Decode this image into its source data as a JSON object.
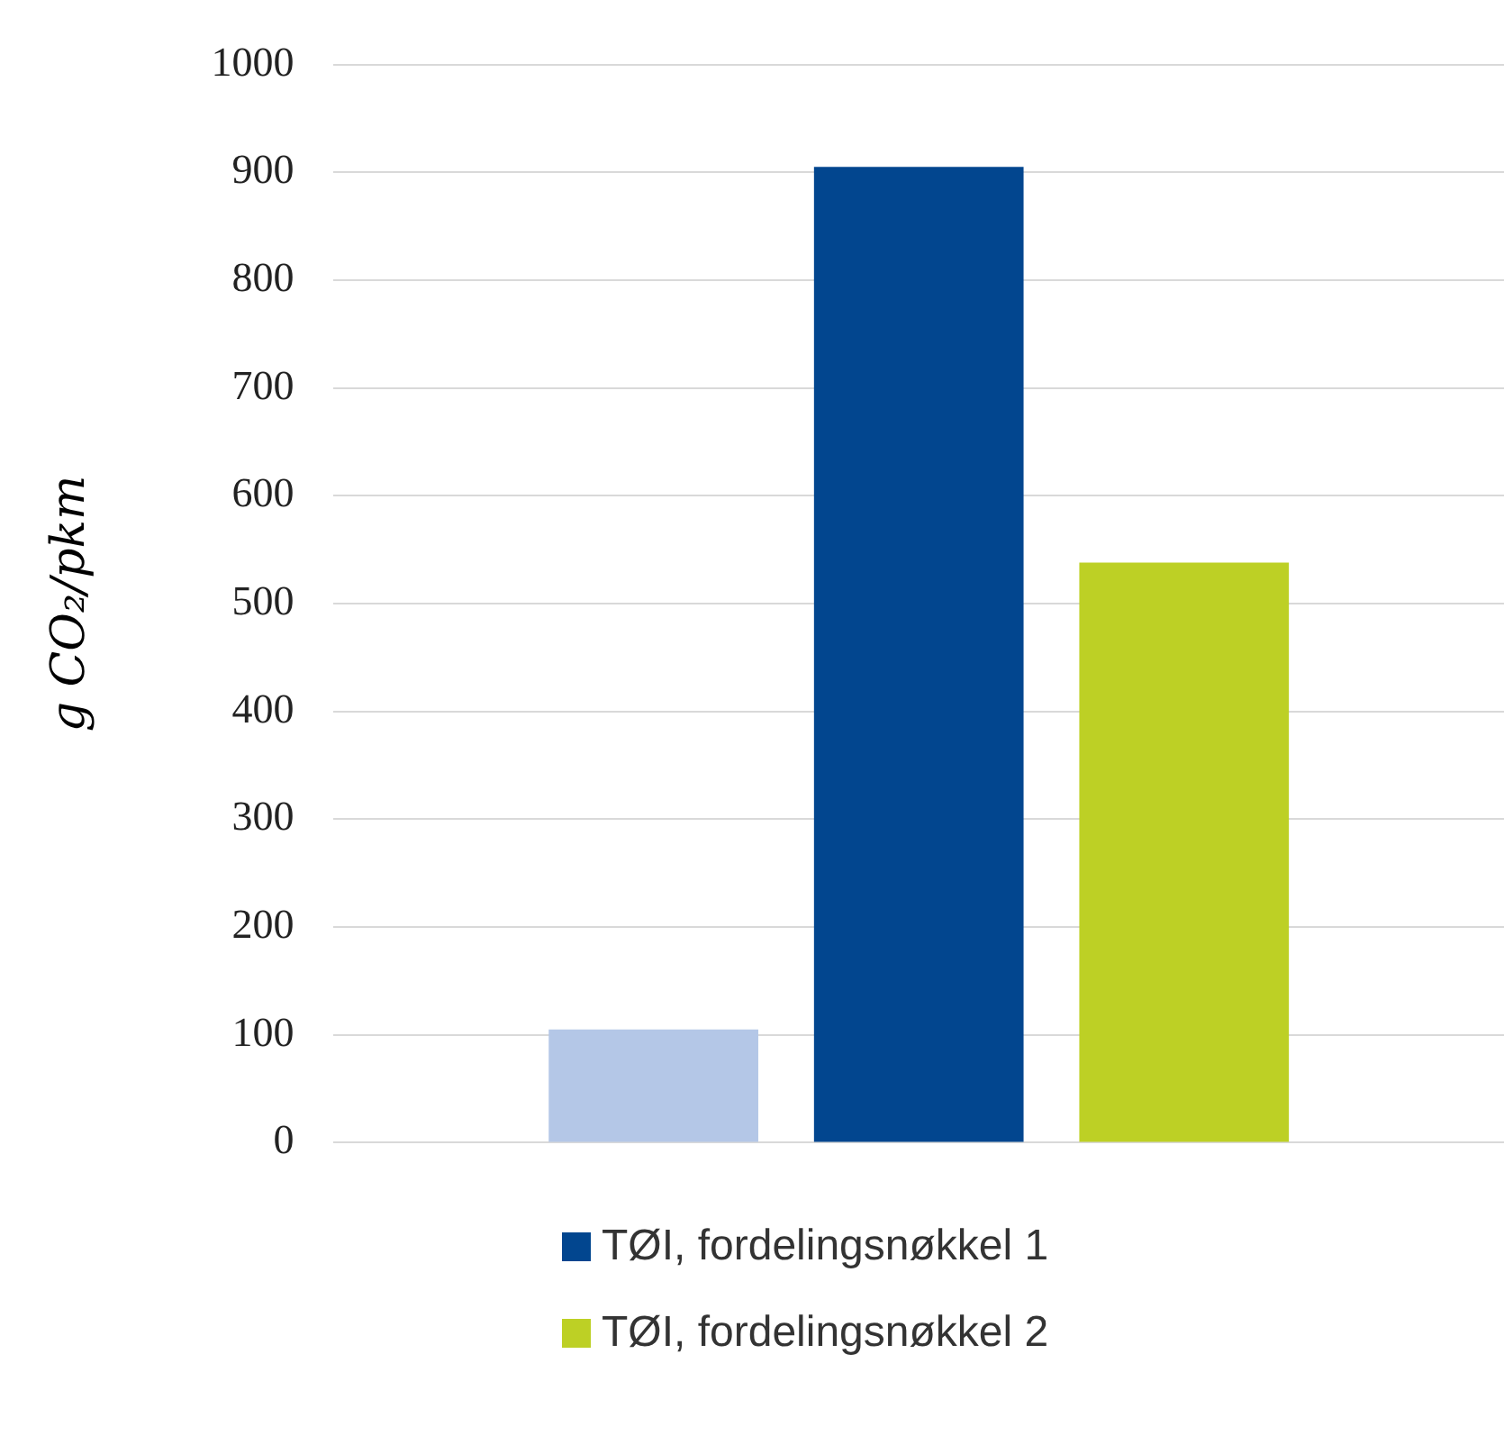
{
  "chart_data": {
    "type": "bar",
    "ylabel": "g CO₂/pkm",
    "categories": [
      null
    ],
    "series": [
      {
        "color": "#b4c7e7",
        "values": [
          105
        ]
      },
      {
        "name": "TØI, fordelingsnøkkel 1",
        "color": "#02468f",
        "values": [
          905
        ]
      },
      {
        "name": "TØI, fordelingsnøkkel 2",
        "color": "#bdd025",
        "values": [
          538
        ]
      }
    ],
    "ylim": [
      0,
      1000
    ],
    "yticks": [
      0,
      100,
      200,
      300,
      400,
      500,
      600,
      700,
      800,
      900,
      1000
    ],
    "grid": "y",
    "legend": "bottom"
  }
}
